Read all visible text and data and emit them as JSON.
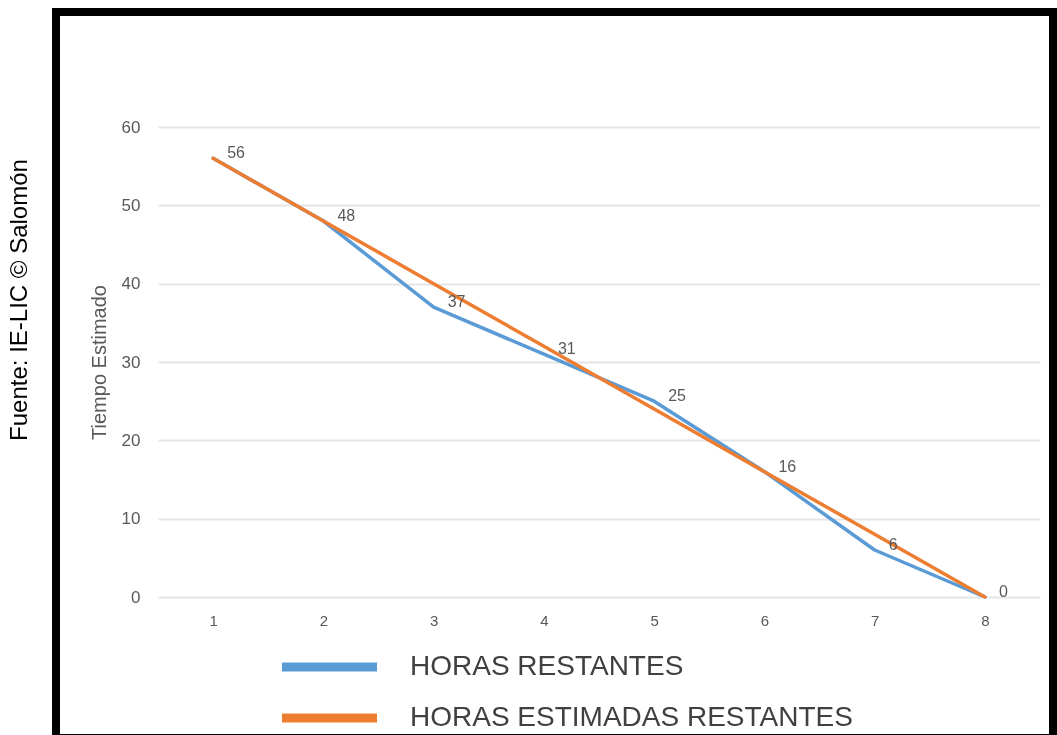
{
  "chart_data": {
    "type": "line",
    "ylabel": "Tiempo Estimado",
    "categories": [
      "1",
      "2",
      "3",
      "4",
      "5",
      "6",
      "7",
      "8"
    ],
    "series": [
      {
        "name": "HORAS RESTANTES",
        "color": "#5b9bd5",
        "values": [
          56,
          48,
          37,
          31,
          25,
          16,
          6,
          0
        ],
        "value_labels": [
          "56",
          "48",
          "37",
          "31",
          "25",
          "16",
          "6",
          "0"
        ]
      },
      {
        "name": "HORAS ESTIMADAS RESTANTES",
        "color": "#ed7d31",
        "values": [
          56,
          48,
          40,
          32,
          24,
          16,
          8,
          0
        ]
      }
    ],
    "ylim": [
      0,
      60
    ],
    "yticks": [
      0,
      10,
      20,
      30,
      40,
      50,
      60
    ],
    "grid": "y",
    "legend": "bottom",
    "line_style": "solid",
    "annotations": [
      "Fuente: IE-LIC © Salomón"
    ]
  }
}
